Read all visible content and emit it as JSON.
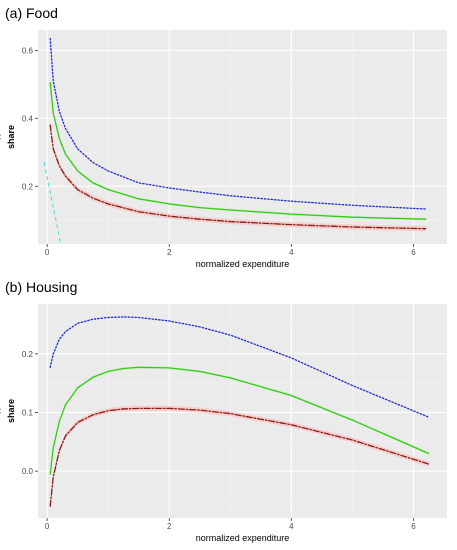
{
  "colors": {
    "panel_background": "#ebebeb",
    "grid_major": "#ffffff",
    "grid_minor": "#f4f4f4",
    "series_upper": "#1f2bd4",
    "series_mid": "#33cc11",
    "series_lower": "#8b1a10",
    "ribbon_lower": "#ffb6b6",
    "ribbon_upper": "#c8ecc8",
    "stray_line": "#00cccc"
  },
  "chart_data": [
    {
      "type": "line",
      "title": "(a) Food",
      "xlabel": "normalized expenditure",
      "ylabel": "share",
      "ylabel_accent": "^",
      "xlim": [
        -0.15,
        6.55
      ],
      "ylim": [
        0.03,
        0.66
      ],
      "x_ticks": [
        0,
        2,
        4,
        6
      ],
      "x_tick_labels": [
        "0",
        "2",
        "4",
        "6"
      ],
      "y_ticks": [
        0.2,
        0.4,
        0.6
      ],
      "y_tick_labels": [
        "0.2",
        "0.4",
        "0.6"
      ],
      "grid": true,
      "legend": "none",
      "x": [
        0.05,
        0.1,
        0.2,
        0.3,
        0.5,
        0.75,
        1,
        1.5,
        2,
        2.5,
        3,
        4,
        5,
        6.2
      ],
      "series": [
        {
          "style": "dotted",
          "color_key": "series_upper",
          "values": [
            0.635,
            0.51,
            0.42,
            0.37,
            0.31,
            0.27,
            0.245,
            0.21,
            0.195,
            0.183,
            0.172,
            0.156,
            0.144,
            0.133
          ]
        },
        {
          "style": "solid",
          "color_key": "series_mid",
          "values": [
            0.505,
            0.415,
            0.34,
            0.295,
            0.245,
            0.21,
            0.19,
            0.163,
            0.148,
            0.137,
            0.13,
            0.118,
            0.109,
            0.103
          ]
        },
        {
          "style": "dashdot",
          "color_key": "series_lower",
          "values": [
            0.38,
            0.31,
            0.26,
            0.23,
            0.19,
            0.165,
            0.148,
            0.125,
            0.112,
            0.103,
            0.096,
            0.087,
            0.08,
            0.075
          ]
        }
      ],
      "stray": {
        "color_key": "stray_line",
        "x": [
          -0.05,
          0.35
        ],
        "y": [
          0.27,
          -0.08
        ]
      }
    },
    {
      "type": "line",
      "title": "(b) Housing",
      "xlabel": "normalized expenditure",
      "ylabel": "share",
      "ylabel_accent": "^",
      "xlim": [
        -0.15,
        6.55
      ],
      "ylim": [
        -0.08,
        0.285
      ],
      "x_ticks": [
        0,
        2,
        4,
        6
      ],
      "x_tick_labels": [
        "0",
        "2",
        "4",
        "6"
      ],
      "y_ticks": [
        0,
        0.1,
        0.2
      ],
      "y_tick_labels": [
        "0.0",
        "0.1",
        "0.2"
      ],
      "grid": true,
      "legend": "none",
      "x": [
        0.05,
        0.1,
        0.2,
        0.3,
        0.5,
        0.75,
        1,
        1.25,
        1.5,
        2,
        2.5,
        3,
        4,
        5,
        6.25
      ],
      "series": [
        {
          "style": "dotted",
          "color_key": "series_upper",
          "values": [
            0.177,
            0.2,
            0.225,
            0.238,
            0.252,
            0.259,
            0.262,
            0.263,
            0.262,
            0.256,
            0.246,
            0.232,
            0.193,
            0.146,
            0.092
          ]
        },
        {
          "style": "solid",
          "color_key": "series_mid",
          "values": [
            -0.005,
            0.04,
            0.085,
            0.113,
            0.142,
            0.16,
            0.17,
            0.175,
            0.177,
            0.176,
            0.17,
            0.159,
            0.129,
            0.087,
            0.03
          ]
        },
        {
          "style": "dashdot",
          "color_key": "series_lower",
          "values": [
            -0.06,
            -0.01,
            0.035,
            0.06,
            0.083,
            0.096,
            0.103,
            0.106,
            0.107,
            0.107,
            0.104,
            0.098,
            0.079,
            0.053,
            0.012
          ]
        }
      ]
    }
  ]
}
